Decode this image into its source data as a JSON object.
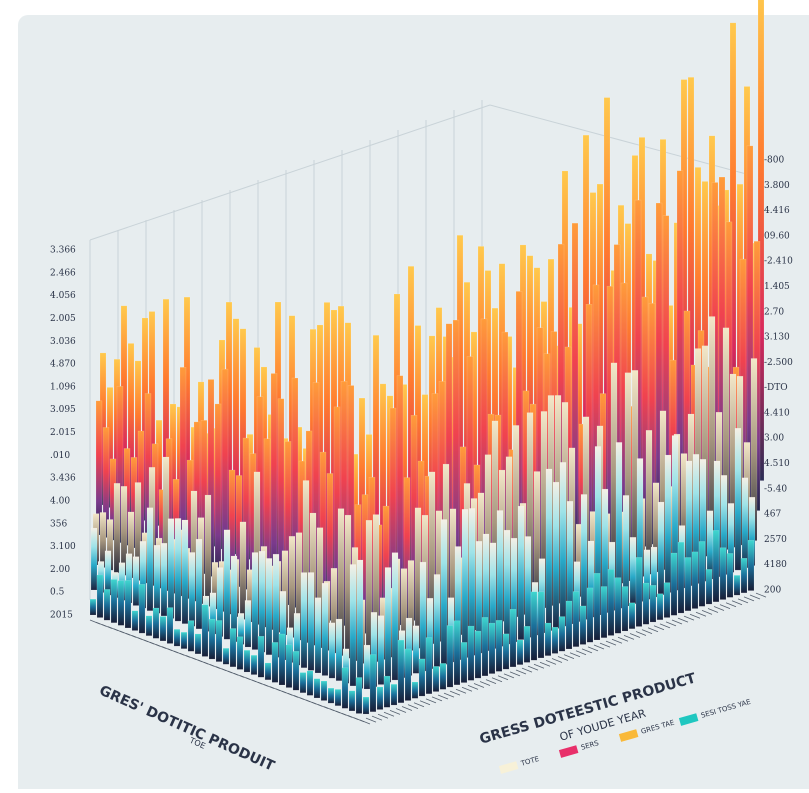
{
  "left_axis_labels": [
    "3.366",
    "2.466",
    "4.056",
    "2.005",
    "3.036",
    "4.870",
    "1.096",
    "3.095",
    "2.015",
    ".010",
    "3.436",
    "4.00",
    "356",
    "3.100",
    "2.00",
    "0.5",
    "2015"
  ],
  "right_axis_labels": [
    "-800",
    "3.800",
    "4.416",
    "09.60",
    "-2.410",
    "1.405",
    "2.70",
    "3.130",
    "-2.500",
    "-DTO",
    "4.410",
    "3.00",
    "4.510",
    "-5.40",
    "467",
    "2570",
    "4180",
    "200"
  ],
  "left_caption": {
    "title": "GRES' DOTITIC PRODUIT",
    "subtitle": "TOE"
  },
  "right_caption": {
    "title": "GRESS DOTEESTIC PRODUCT",
    "subtitle": "OF YOUDE YEAR"
  },
  "legend": [
    {
      "label": "TOTE",
      "color": "#f7f1d8"
    },
    {
      "label": "SERS",
      "color": "#e8306a"
    },
    {
      "label": "GRES TAE",
      "color": "#f9b93a"
    },
    {
      "label": "SESI TOSS YAE",
      "color": "#1fc7c0"
    }
  ]
}
